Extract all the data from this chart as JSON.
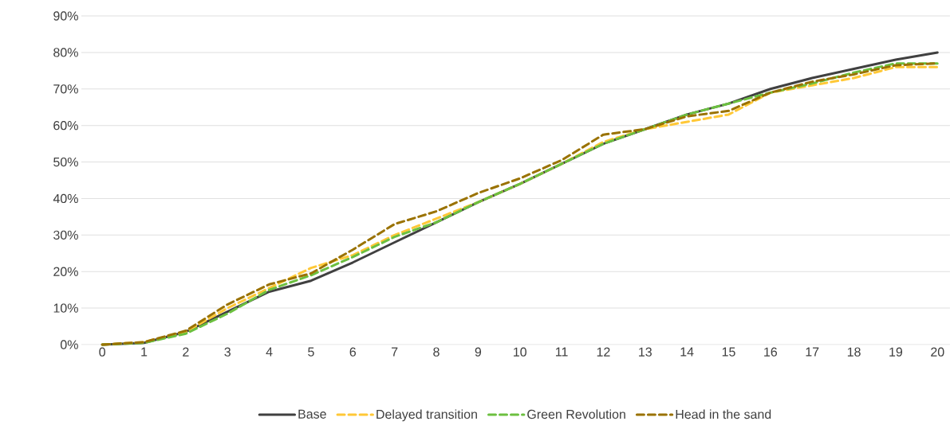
{
  "chart_data": {
    "type": "line",
    "categories": [
      "0",
      "1",
      "2",
      "3",
      "4",
      "5",
      "6",
      "7",
      "8",
      "9",
      "10",
      "11",
      "12",
      "13",
      "14",
      "15",
      "16",
      "17",
      "18",
      "19",
      "20"
    ],
    "ylim": [
      0,
      90
    ],
    "yticks": [
      {
        "value": 0,
        "label": "0%"
      },
      {
        "value": 10,
        "label": "10%"
      },
      {
        "value": 20,
        "label": "20%"
      },
      {
        "value": 30,
        "label": "30%"
      },
      {
        "value": 40,
        "label": "40%"
      },
      {
        "value": 50,
        "label": "50%"
      },
      {
        "value": 60,
        "label": "60%"
      },
      {
        "value": 70,
        "label": "70%"
      },
      {
        "value": 80,
        "label": "80%"
      },
      {
        "value": 90,
        "label": "90%"
      }
    ],
    "grid": "y",
    "legend": "bottom",
    "marker": "none",
    "series": [
      {
        "name": "Base",
        "color": "#404040",
        "line_style": "solid",
        "values": [
          0,
          0.5,
          3.5,
          9,
          14.5,
          17.5,
          22.5,
          28,
          33.5,
          39,
          44,
          49.5,
          55,
          59,
          63,
          66,
          70,
          73,
          75.5,
          78,
          80
        ]
      },
      {
        "name": "Delayed transition",
        "color": "#ffc837",
        "line_style": "dashed",
        "values": [
          0,
          0.7,
          3.5,
          10,
          15.5,
          21,
          24.5,
          30,
          34.5,
          39,
          44,
          49.5,
          55.5,
          59,
          61,
          63,
          69,
          71,
          73,
          76,
          76
        ]
      },
      {
        "name": "Green Revolution",
        "color": "#6cc040",
        "line_style": "dashed",
        "values": [
          0,
          0.5,
          3,
          8.5,
          15,
          19,
          24,
          29.5,
          33.5,
          39,
          44,
          49.5,
          55,
          59,
          63,
          66,
          69,
          71.5,
          74.5,
          77,
          77
        ]
      },
      {
        "name": "Head in the sand",
        "color": "#9a7200",
        "line_style": "dashed",
        "values": [
          0,
          0.7,
          3.8,
          11,
          16.5,
          19.5,
          26,
          33,
          36.5,
          41.5,
          45.5,
          50.5,
          57.5,
          59,
          62.5,
          64,
          69,
          72,
          74,
          76.5,
          77
        ]
      }
    ]
  }
}
